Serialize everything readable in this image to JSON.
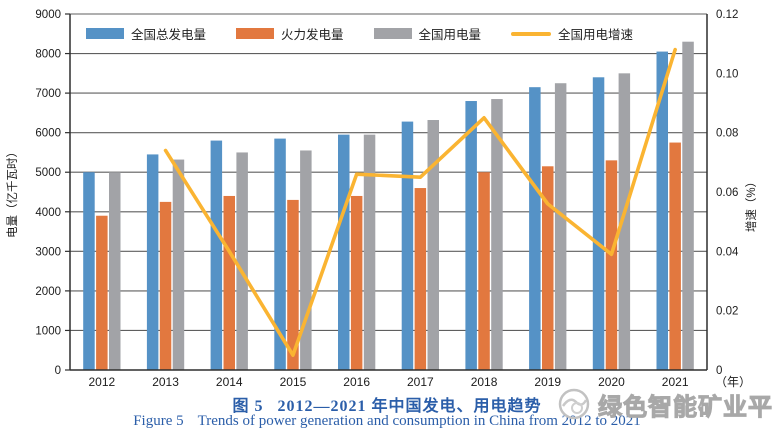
{
  "chart_data": {
    "type": "bar+line",
    "title": "",
    "categories": [
      "2012",
      "2013",
      "2014",
      "2015",
      "2016",
      "2017",
      "2018",
      "2019",
      "2020",
      "2021"
    ],
    "series": [
      {
        "name": "全国总发电量",
        "type": "bar",
        "axis": "left",
        "color": "#5592C6",
        "values": [
          5000,
          5450,
          5800,
          5850,
          5950,
          6280,
          6800,
          7150,
          7400,
          8050
        ]
      },
      {
        "name": "火力发电量",
        "type": "bar",
        "axis": "left",
        "color": "#E2783F",
        "values": [
          3900,
          4250,
          4400,
          4300,
          4400,
          4600,
          5000,
          5150,
          5300,
          5750
        ]
      },
      {
        "name": "全国用电量",
        "type": "bar",
        "axis": "left",
        "color": "#A2A3A7",
        "values": [
          5000,
          5320,
          5500,
          5550,
          5950,
          6320,
          6850,
          7250,
          7500,
          8300
        ]
      },
      {
        "name": "全国用电增速",
        "type": "line",
        "axis": "right",
        "color": "#FAB432",
        "values": [
          null,
          0.074,
          0.04,
          0.005,
          0.066,
          0.065,
          0.085,
          0.056,
          0.039,
          0.108
        ]
      }
    ],
    "left_axis": {
      "label": "电量（亿千瓦时）",
      "min": 0,
      "max": 9000,
      "step": 1000
    },
    "right_axis": {
      "label": "增速（%）",
      "min": 0,
      "max": 0.12,
      "step": 0.02
    },
    "x_axis_suffix": "（年）",
    "grid": true,
    "legend_position": "top-inside"
  },
  "caption": {
    "zh_fig": "图 5",
    "zh_text": "2012—2021 年中国发电、用电趋势",
    "en_fig": "Figure 5",
    "en_text": "Trends of power generation and consumption in China from 2012 to 2021",
    "color": "#2b5ea9"
  },
  "watermark": {
    "text": "绿色智能矿业平台"
  }
}
